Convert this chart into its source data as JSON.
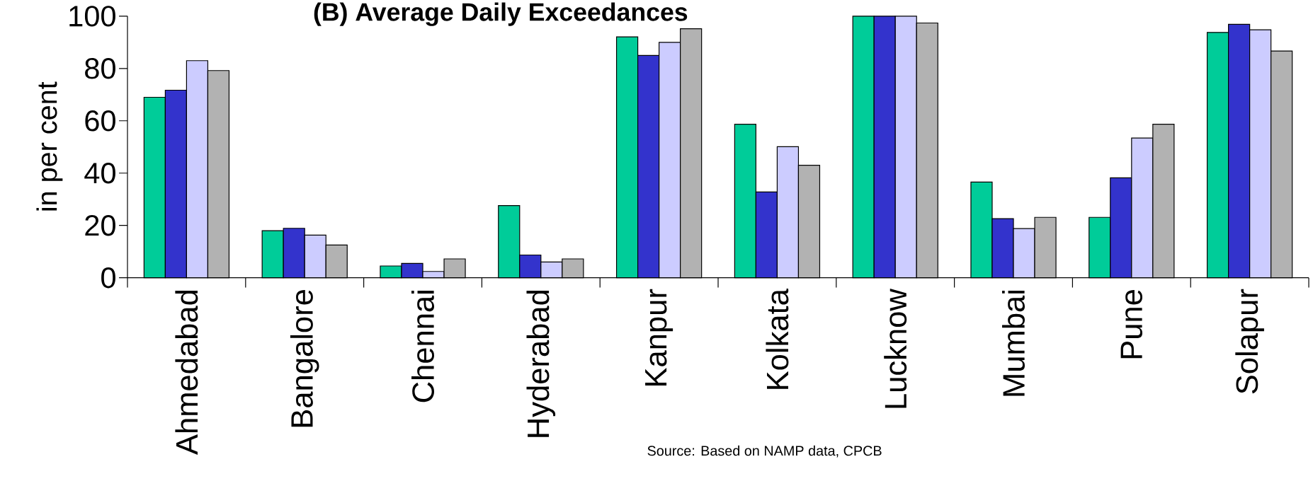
{
  "chart_data": {
    "type": "bar",
    "title": "(B) Average Daily Exceedances",
    "ylabel": "in per cent",
    "categories": [
      "Ahmedabad",
      "Bangalore",
      "Chennai",
      "Hyderabad",
      "Kanpur",
      "Kolkata",
      "Lucknow",
      "Mumbai",
      "Pune",
      "Solapur"
    ],
    "series": [
      {
        "color": "#00cc99",
        "values": [
          69,
          18,
          4.5,
          27.6,
          92.1,
          58.7,
          100,
          36.6,
          23.1,
          93.8
        ]
      },
      {
        "color": "#3333cc",
        "values": [
          71.7,
          18.9,
          5.5,
          8.7,
          85,
          32.8,
          100,
          22.6,
          38.2,
          96.9
        ]
      },
      {
        "color": "#ccccff",
        "values": [
          83,
          16.3,
          2.4,
          6,
          90,
          50.1,
          100,
          18.8,
          53.4,
          94.8
        ]
      },
      {
        "color": "#b2b2b2",
        "values": [
          79.2,
          12.5,
          7.2,
          7.2,
          95.2,
          43,
          97.4,
          23.1,
          58.7,
          86.7
        ]
      }
    ],
    "ylim": [
      0,
      100
    ],
    "yticks": [
      0,
      20,
      40,
      60,
      80,
      100
    ],
    "grid": false,
    "annotations": [
      "Source: Based on NAMP data, CPCB"
    ]
  }
}
